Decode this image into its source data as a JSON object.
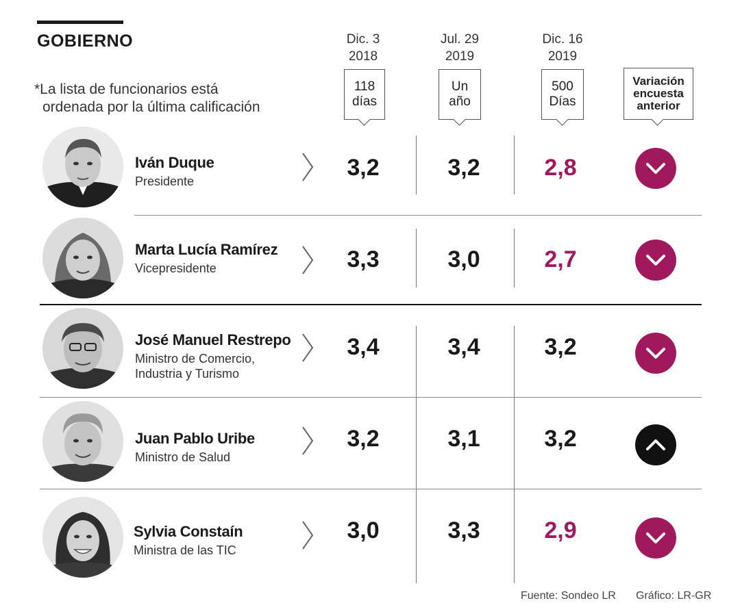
{
  "header": {
    "section_title": "GOBIERNO",
    "note_line1": "*La lista de funcionarios está",
    "note_line2": "ordenada por la última calificación"
  },
  "columns": [
    {
      "date_line1": "Dic. 3",
      "date_line2": "2018",
      "label_line1": "118",
      "label_line2": "días"
    },
    {
      "date_line1": "Jul. 29",
      "date_line2": "2019",
      "label_line1": "Un",
      "label_line2": "año"
    },
    {
      "date_line1": "Dic. 16",
      "date_line2": "2019",
      "label_line1": "500",
      "label_line2": "Días"
    }
  ],
  "variation_header": {
    "line1": "Variación",
    "line2": "encuesta",
    "line3": "anterior"
  },
  "rows": [
    {
      "name": "Iván Duque",
      "role_line1": "Presidente",
      "role_line2": "",
      "values": [
        "3,2",
        "3,2",
        "2,8"
      ],
      "variation": "down"
    },
    {
      "name": "Marta Lucía Ramírez",
      "role_line1": "Vicepresidente",
      "role_line2": "",
      "values": [
        "3,3",
        "3,0",
        "2,7"
      ],
      "variation": "down"
    },
    {
      "name": "José Manuel Restrepo",
      "role_line1": "Ministro de Comercio,",
      "role_line2": "Industria y Turismo",
      "values": [
        "3,4",
        "3,4",
        "3,2"
      ],
      "variation": "down"
    },
    {
      "name": "Juan Pablo Uribe",
      "role_line1": "Ministro de Salud",
      "role_line2": "",
      "values": [
        "3,2",
        "3,1",
        "3,2"
      ],
      "variation": "up"
    },
    {
      "name": "Sylvia Constaín",
      "role_line1": "Ministra de las TIC",
      "role_line2": "",
      "values": [
        "3,0",
        "3,3",
        "2,9"
      ],
      "variation": "down"
    }
  ],
  "footer": {
    "source": "Fuente: Sondeo LR",
    "credit": "Gráfico: LR-GR"
  },
  "colors": {
    "accent_drop": "#a0195f",
    "up": "#111111",
    "text": "#1a1a1a"
  },
  "chart_data": {
    "type": "table",
    "title": "GOBIERNO",
    "categories": [
      "Iván Duque",
      "Marta Lucía Ramírez",
      "José Manuel Restrepo",
      "Juan Pablo Uribe",
      "Sylvia Constaín"
    ],
    "series": [
      {
        "name": "Dic. 3 2018 (118 días)",
        "values": [
          3.2,
          3.3,
          3.4,
          3.2,
          3.0
        ]
      },
      {
        "name": "Jul. 29 2019 (Un año)",
        "values": [
          3.2,
          3.0,
          3.4,
          3.1,
          3.3
        ]
      },
      {
        "name": "Dic. 16 2019 (500 Días)",
        "values": [
          2.8,
          2.7,
          3.2,
          3.2,
          2.9
        ]
      }
    ],
    "variation": [
      "down",
      "down",
      "down",
      "up",
      "down"
    ]
  }
}
